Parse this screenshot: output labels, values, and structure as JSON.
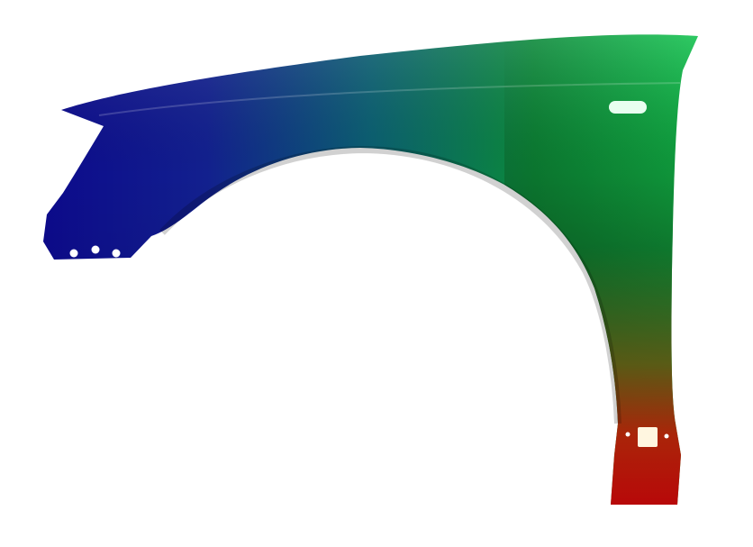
{
  "image": {
    "subject": "car-front-fender",
    "colors": {
      "background": "#ffffff",
      "left_blue": "#0c0a8c",
      "mid_teal": "#0a6a6a",
      "top_right_green": "#12c24e",
      "dark_green": "#0b5a1e",
      "bottom_red": "#d80a0a",
      "mid_orange": "#8a5a10"
    }
  }
}
